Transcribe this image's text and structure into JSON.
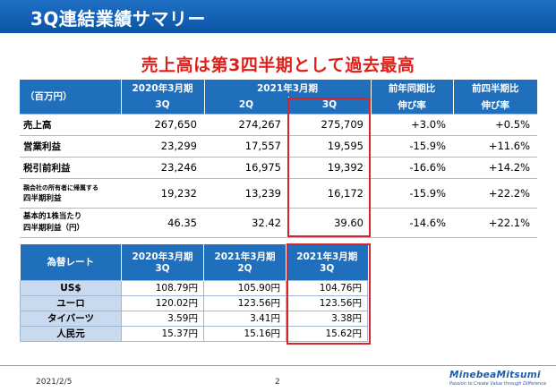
{
  "header": {
    "title": "3Q連結業績サマリー"
  },
  "headline": "売上高は第3四半期として過去最高",
  "main_table": {
    "unit_label": "（百万円）",
    "col_fy2020": "2020年3月期",
    "col_fy2021": "2021年3月期",
    "col_yoy": "前年同期比",
    "col_qoq": "前四半期比",
    "sub_2020_3q": "3Q",
    "sub_2021_2q": "2Q",
    "sub_2021_3q": "3Q",
    "sub_yoy": "伸び率",
    "sub_qoq": "伸び率",
    "rows": [
      {
        "label": "売上高",
        "fy2020_3q": "267,650",
        "fy2021_2q": "274,267",
        "fy2021_3q": "275,709",
        "yoy": "+3.0%",
        "qoq": "+0.5%"
      },
      {
        "label": "営業利益",
        "fy2020_3q": "23,299",
        "fy2021_2q": "17,557",
        "fy2021_3q": "19,595",
        "yoy": "-15.9%",
        "qoq": "+11.6%"
      },
      {
        "label": "税引前利益",
        "fy2020_3q": "23,246",
        "fy2021_2q": "16,975",
        "fy2021_3q": "19,392",
        "yoy": "-16.6%",
        "qoq": "+14.2%"
      },
      {
        "label_line1": "親会社の所有者に帰属する",
        "label_line2": "四半期利益",
        "fy2020_3q": "19,232",
        "fy2021_2q": "13,239",
        "fy2021_3q": "16,172",
        "yoy": "-15.9%",
        "qoq": "+22.2%"
      },
      {
        "label_line1": "基本的1株当たり",
        "label_line2": "四半期利益（円）",
        "fy2020_3q": "46.35",
        "fy2021_2q": "32.42",
        "fy2021_3q": "39.60",
        "yoy": "-14.6%",
        "qoq": "+22.1%"
      }
    ]
  },
  "fx_table": {
    "label": "為替レート",
    "col1_line1": "2020年3月期",
    "col1_line2": "3Q",
    "col2_line1": "2021年3月期",
    "col2_line2": "2Q",
    "col3_line1": "2021年3月期",
    "col3_line2": "3Q",
    "rows": [
      {
        "label": "US$",
        "v1": "108.79円",
        "v2": "105.90円",
        "v3": "104.76円"
      },
      {
        "label": "ユーロ",
        "v1": "120.02円",
        "v2": "123.56円",
        "v3": "123.56円"
      },
      {
        "label": "タイバーツ",
        "v1": "3.59円",
        "v2": "3.41円",
        "v3": "3.38円"
      },
      {
        "label": "人民元",
        "v1": "15.37円",
        "v2": "15.16円",
        "v3": "15.62円"
      }
    ]
  },
  "footer": {
    "date": "2021/2/5",
    "page": "2",
    "logo": "MinebeaMitsumi",
    "logo_tagline": "Passion to Create Value through Difference"
  },
  "colors": {
    "header_blue": "#0b54a6",
    "table_header": "#1f6fbd",
    "accent_red": "#e0201b",
    "fx_label_bg": "#c9d9ee"
  }
}
